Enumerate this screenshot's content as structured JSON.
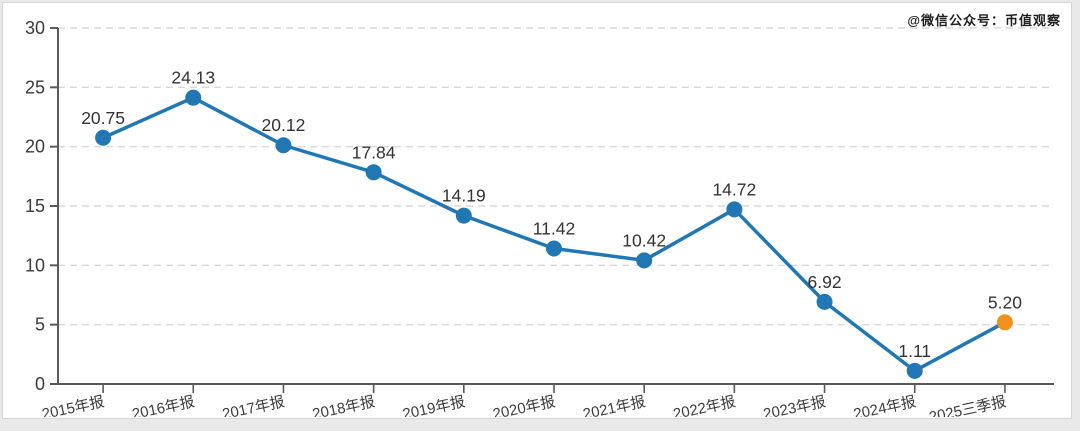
{
  "watermark": {
    "text": "@微信公众号：币值观察"
  },
  "chart_data": {
    "type": "line",
    "title": "",
    "xlabel": "",
    "ylabel": "",
    "categories": [
      "2015年报",
      "2016年报",
      "2017年报",
      "2018年报",
      "2019年报",
      "2020年报",
      "2021年报",
      "2022年报",
      "2023年报",
      "2024年报",
      "2025三季报"
    ],
    "values": [
      20.75,
      24.13,
      20.12,
      17.84,
      14.19,
      11.42,
      10.42,
      14.72,
      6.92,
      1.11,
      5.2
    ],
    "value_label_decimals": 2,
    "ylim": [
      0,
      30
    ],
    "ytick_step": 5,
    "grid": true,
    "legend_position": "none",
    "x_label_rotation_deg": -12,
    "colors": {
      "line": "#2077B4",
      "marker": "#2077B4",
      "last_marker": "#F0911E",
      "axis": "#595959",
      "grid": "#D9D9D9",
      "tick_label": "#3B3B3B",
      "value_label": "#333333"
    }
  }
}
